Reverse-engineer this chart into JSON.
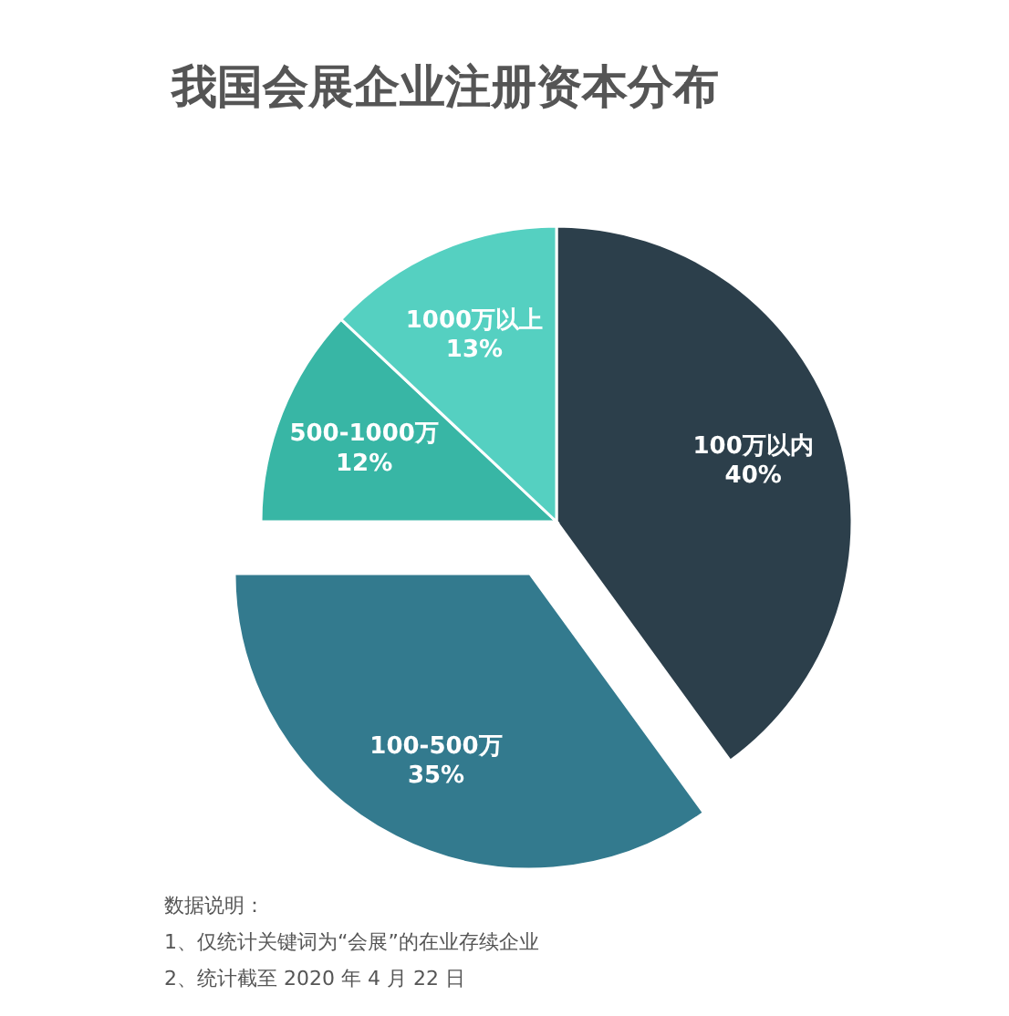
{
  "chart_data": {
    "type": "pie",
    "title": "我国会展企业注册资本分布",
    "categories": [
      "100万以内",
      "100-500万",
      "500-1000万",
      "1000万以上"
    ],
    "values": [
      40,
      35,
      12,
      13
    ],
    "value_labels": [
      "40%",
      "35%",
      "12%",
      "13%"
    ],
    "colors": [
      "#2c3f4b",
      "#337a8e",
      "#38b6a5",
      "#55d0c1"
    ],
    "legend": false,
    "annotations": [
      "数据说明：",
      "1、仅统计关键词为“会展”的在业存续企业",
      "2、统计截至 2020 年 4 月 22 日"
    ]
  }
}
